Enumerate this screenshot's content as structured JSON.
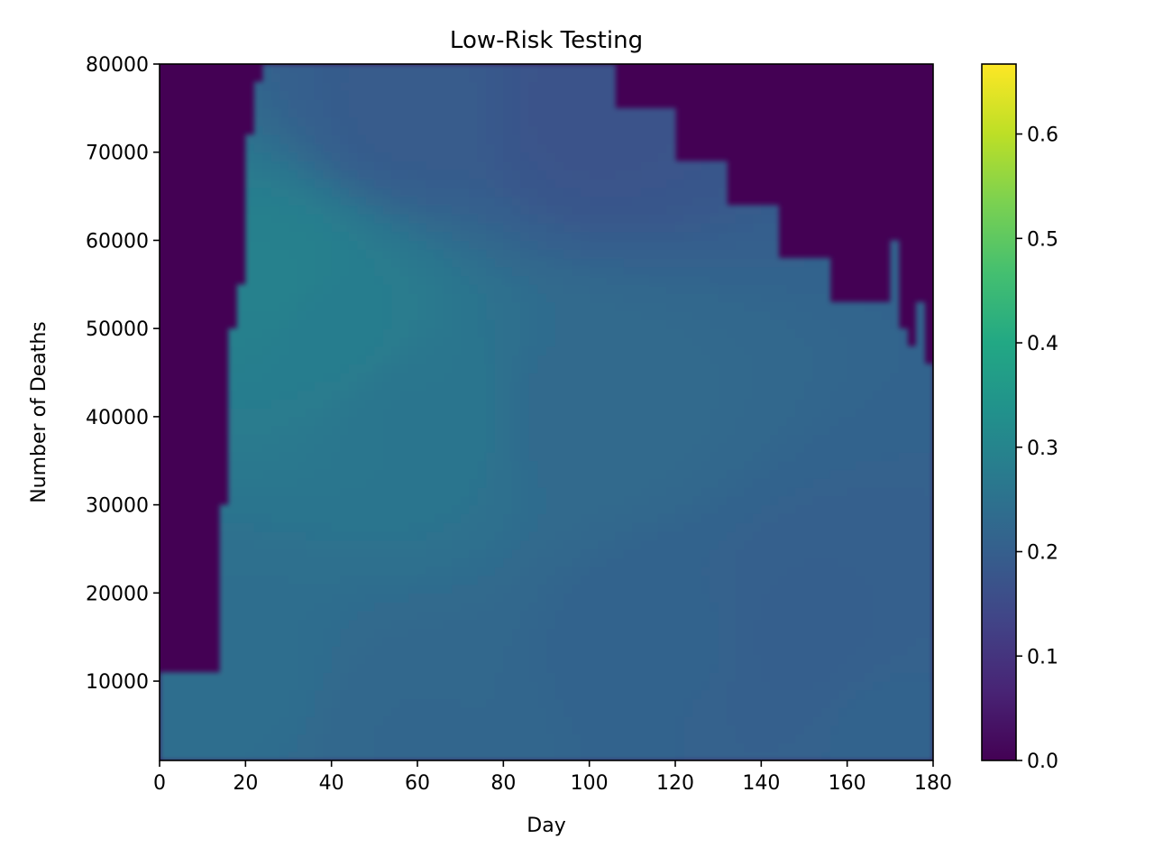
{
  "chart_data": {
    "type": "heatmap",
    "title": "Low-Risk Testing",
    "xlabel": "Day",
    "ylabel": "Number of Deaths",
    "xlim": [
      0,
      180
    ],
    "ylim": [
      1000,
      80000
    ],
    "x_ticks": [
      0,
      20,
      40,
      60,
      80,
      100,
      120,
      140,
      160,
      180
    ],
    "y_ticks": [
      10000,
      20000,
      30000,
      40000,
      50000,
      60000,
      70000,
      80000
    ],
    "colorbar": {
      "colormap": "viridis",
      "range": [
        0,
        0.667
      ],
      "ticks": [
        0.0,
        0.1,
        0.2,
        0.3,
        0.4,
        0.5,
        0.6
      ],
      "tick_labels": [
        "0.0",
        "0.1",
        "0.2",
        "0.3",
        "0.4",
        "0.5",
        "0.6"
      ]
    },
    "support_boundary": [
      {
        "day": 0,
        "deaths": 11000
      },
      {
        "day": 14,
        "deaths": 11000
      },
      {
        "day": 15,
        "deaths": 30000
      },
      {
        "day": 16,
        "deaths": 48000
      },
      {
        "day": 19,
        "deaths": 55000
      },
      {
        "day": 20,
        "deaths": 68000
      },
      {
        "day": 22,
        "deaths": 75000
      },
      {
        "day": 24,
        "deaths": 80000
      },
      {
        "day": 106,
        "deaths": 80000
      },
      {
        "day": 107,
        "deaths": 74500
      },
      {
        "day": 119,
        "deaths": 74500
      },
      {
        "day": 120,
        "deaths": 69000
      },
      {
        "day": 132,
        "deaths": 69000
      },
      {
        "day": 133,
        "deaths": 63500
      },
      {
        "day": 144,
        "deaths": 63500
      },
      {
        "day": 145,
        "deaths": 58000
      },
      {
        "day": 156,
        "deaths": 58000
      },
      {
        "day": 157,
        "deaths": 52500
      },
      {
        "day": 170,
        "deaths": 52500
      },
      {
        "day": 171,
        "deaths": 60000
      },
      {
        "day": 172,
        "deaths": 47000
      },
      {
        "day": 174,
        "deaths": 52000
      },
      {
        "day": 175,
        "deaths": 48000
      },
      {
        "day": 177,
        "deaths": 53000
      },
      {
        "day": 178,
        "deaths": 47000
      },
      {
        "day": 180,
        "deaths": 45000
      }
    ],
    "value_anchors": [
      {
        "day": 15,
        "deaths": 10000,
        "value": 0.24
      },
      {
        "day": 25,
        "deaths": 55000,
        "value": 0.29
      },
      {
        "day": 40,
        "deaths": 50000,
        "value": 0.28
      },
      {
        "day": 60,
        "deaths": 40000,
        "value": 0.26
      },
      {
        "day": 60,
        "deaths": 75000,
        "value": 0.19
      },
      {
        "day": 100,
        "deaths": 75000,
        "value": 0.17
      },
      {
        "day": 100,
        "deaths": 40000,
        "value": 0.23
      },
      {
        "day": 120,
        "deaths": 15000,
        "value": 0.21
      },
      {
        "day": 150,
        "deaths": 15000,
        "value": 0.2
      },
      {
        "day": 170,
        "deaths": 5000,
        "value": 0.21
      },
      {
        "day": 60,
        "deaths": 3000,
        "value": 0.22
      }
    ]
  }
}
